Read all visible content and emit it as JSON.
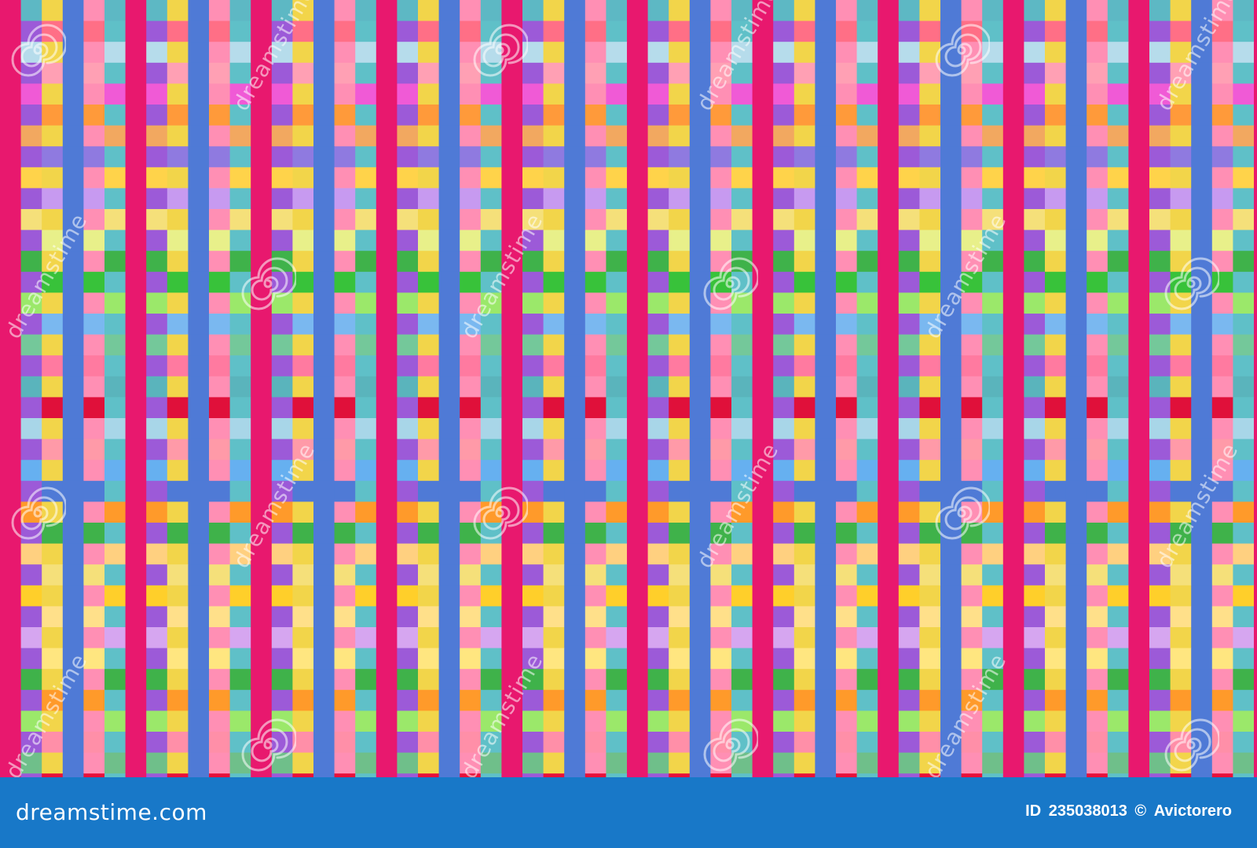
{
  "image": {
    "description_colors": {
      "footer_bg": "#1878c8",
      "column_cycle": [
        "#e0106e",
        "#ff9a4a",
        "#f06bd0",
        "#4f7ad6",
        "#3fb24a",
        "#f2d54a",
        "#a778e8",
        "#ff7aa8",
        "#8fe07a",
        "#5db8c4"
      ]
    },
    "watermark_text": "dreamstime",
    "watermark_icon": "spiral-icon"
  },
  "footer": {
    "brand": "dreamstime.com",
    "id_label": "ID",
    "id_value": "235038013",
    "copyright_symbol": "©",
    "author": "Avictorero"
  }
}
